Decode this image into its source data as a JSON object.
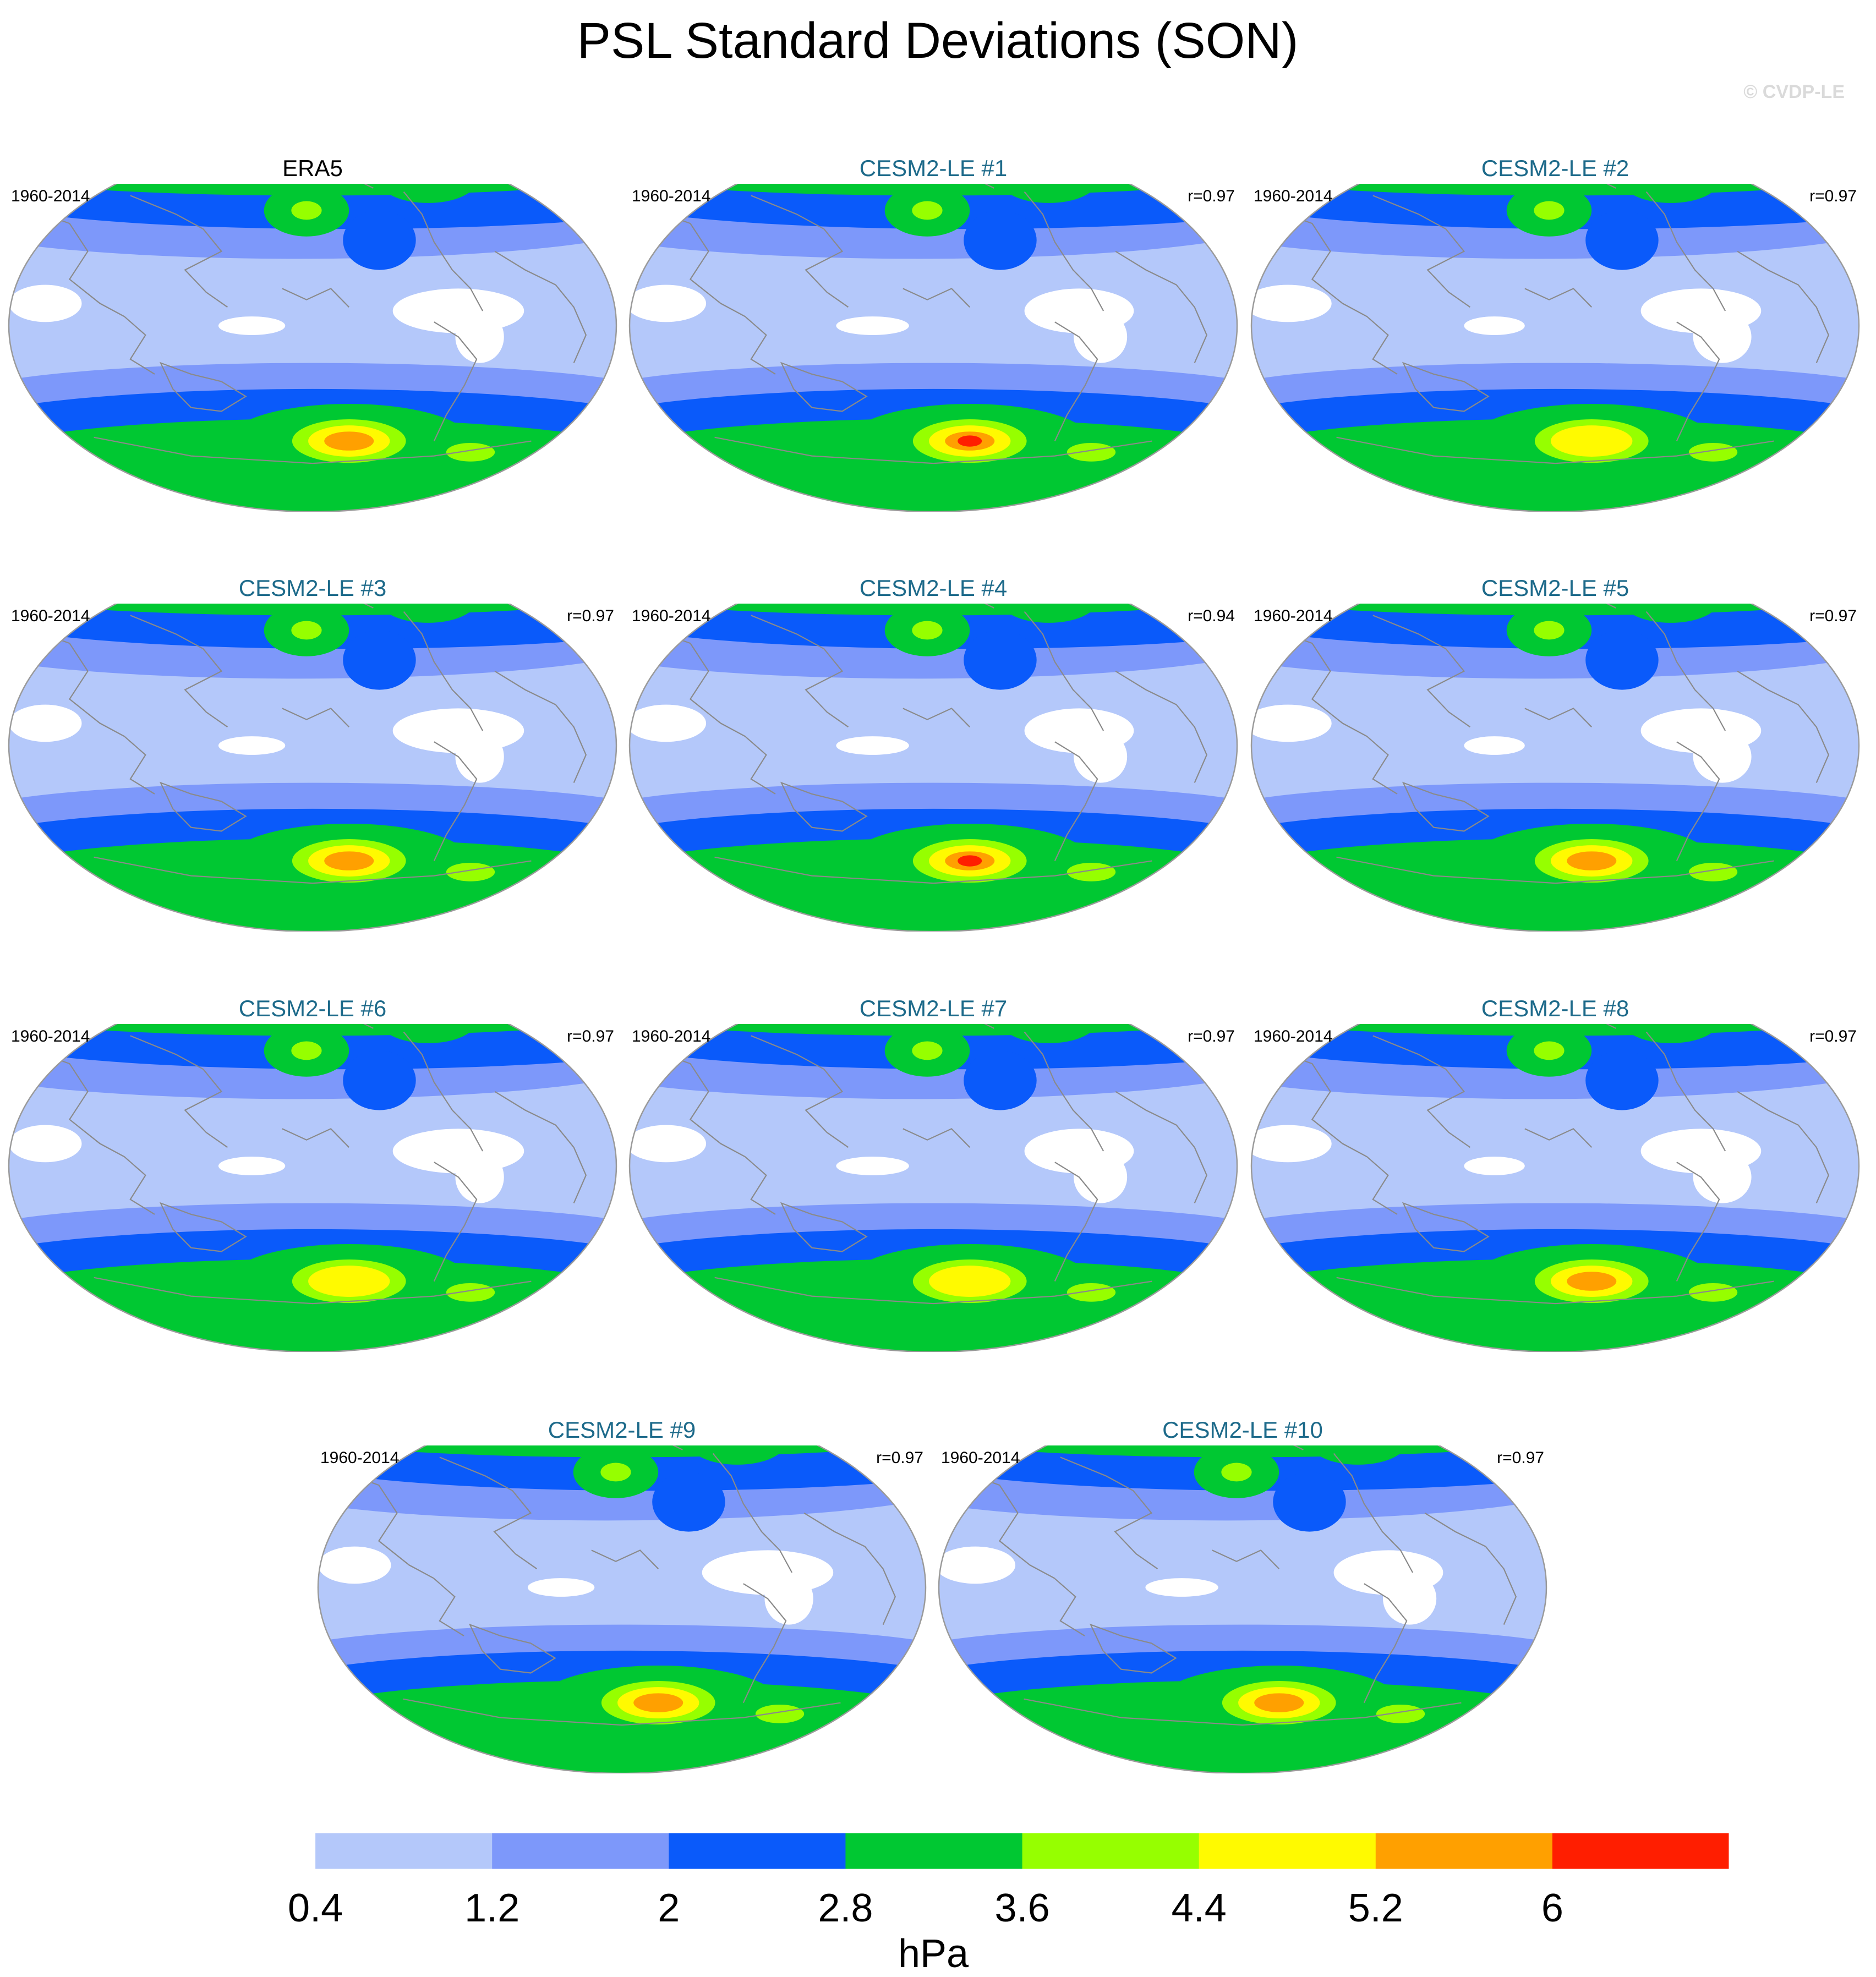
{
  "title": "PSL Standard Deviations (SON)",
  "watermark": "© CVDP-LE",
  "chart_data": {
    "type": "heatmap",
    "title": "PSL Standard Deviations (SON)",
    "units": "hPa",
    "colorbar": {
      "levels": [
        0.4,
        1.2,
        2,
        2.8,
        3.6,
        4.4,
        5.2,
        6
      ],
      "tick_labels": [
        "0.4",
        "1.2",
        "2",
        "2.8",
        "3.6",
        "4.4",
        "5.2",
        "6"
      ],
      "colors": [
        "#ffffff",
        "#b4c8fa",
        "#7d98fa",
        "#0a5afa",
        "#00c832",
        "#96ff00",
        "#fffa00",
        "#ffa000",
        "#ff1e00"
      ]
    },
    "panels": [
      {
        "name": "ERA5",
        "period": "1960-2014",
        "r": "",
        "reference": true,
        "south_peak": 5.6,
        "north_peak": 4.0
      },
      {
        "name": "CESM2-LE #1",
        "period": "1960-2014",
        "r": "r=0.97",
        "south_peak": 6.3,
        "north_peak": 4.6
      },
      {
        "name": "CESM2-LE #2",
        "period": "1960-2014",
        "r": "r=0.97",
        "south_peak": 5.0,
        "north_peak": 4.0
      },
      {
        "name": "CESM2-LE #3",
        "period": "1960-2014",
        "r": "r=0.97",
        "south_peak": 5.8,
        "north_peak": 4.6
      },
      {
        "name": "CESM2-LE #4",
        "period": "1960-2014",
        "r": "r=0.94",
        "south_peak": 6.5,
        "north_peak": 4.6
      },
      {
        "name": "CESM2-LE #5",
        "period": "1960-2014",
        "r": "r=0.97",
        "south_peak": 5.6,
        "north_peak": 4.6
      },
      {
        "name": "CESM2-LE #6",
        "period": "1960-2014",
        "r": "r=0.97",
        "south_peak": 4.9,
        "north_peak": 4.0
      },
      {
        "name": "CESM2-LE #7",
        "period": "1960-2014",
        "r": "r=0.97",
        "south_peak": 4.9,
        "north_peak": 4.6
      },
      {
        "name": "CESM2-LE #8",
        "period": "1960-2014",
        "r": "r=0.97",
        "south_peak": 5.6,
        "north_peak": 4.0
      },
      {
        "name": "CESM2-LE #9",
        "period": "1960-2014",
        "r": "r=0.97",
        "south_peak": 5.6,
        "north_peak": 4.6
      },
      {
        "name": "CESM2-LE #10",
        "period": "1960-2014",
        "r": "r=0.97",
        "south_peak": 5.5,
        "north_peak": 4.6
      }
    ]
  }
}
